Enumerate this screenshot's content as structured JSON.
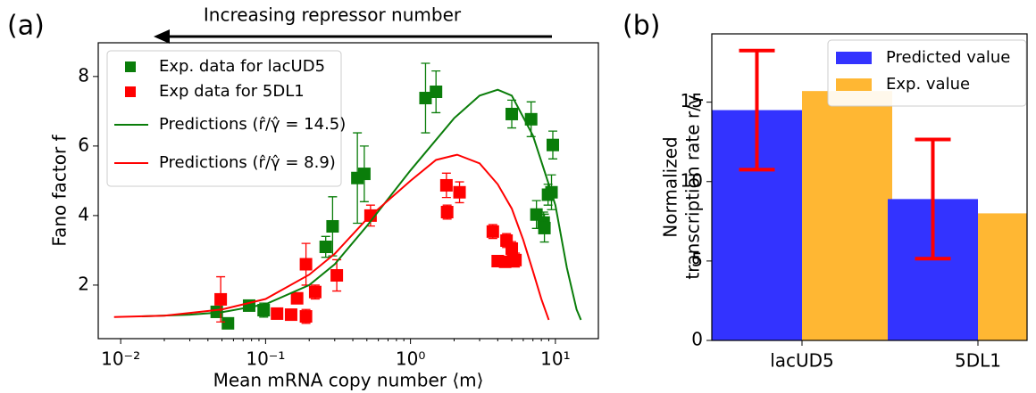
{
  "chart_data": [
    {
      "type": "scatter",
      "panel_label": "(a)",
      "annotation": "Increasing repressor number",
      "xlabel": "Mean mRNA copy number ⟨m⟩",
      "ylabel": "Fano factor f",
      "xscale": "log",
      "xlim": [
        0.007,
        19.8
      ],
      "ylim": [
        0.46,
        8.97
      ],
      "xticks": [
        {
          "value": 0.01,
          "label": "10⁻²"
        },
        {
          "value": 0.1,
          "label": "10⁻¹"
        },
        {
          "value": 1,
          "label": "10⁰"
        },
        {
          "value": 10,
          "label": "10¹"
        }
      ],
      "yticks": [
        2,
        4,
        6,
        8
      ],
      "legend": "upper left",
      "series": [
        {
          "name": "Exp. data for lacUD5",
          "color": "#0a7d0a",
          "kind": "scatter",
          "x": [
            0.046,
            0.055,
            0.077,
            0.097,
            0.26,
            0.29,
            0.43,
            0.48,
            1.27,
            1.5,
            5.0,
            6.8,
            7.4,
            8.3,
            8.4,
            8.9,
            9.4,
            9.6
          ],
          "values": [
            1.23,
            0.9,
            1.41,
            1.28,
            3.1,
            3.69,
            5.08,
            5.2,
            7.38,
            7.56,
            6.92,
            6.77,
            4.03,
            3.8,
            3.64,
            4.6,
            4.67,
            6.03
          ],
          "errors": [
            0.1,
            0.05,
            0.1,
            0.2,
            0.3,
            0.85,
            1.3,
            0.8,
            1.0,
            0.6,
            0.4,
            0.5,
            0.4,
            0.3,
            0.4,
            0.3,
            0.5,
            0.4
          ]
        },
        {
          "name": "Exp data for 5DL1",
          "color": "#ff0000",
          "kind": "scatter",
          "x": [
            0.049,
            0.12,
            0.15,
            0.165,
            0.19,
            0.19,
            0.22,
            0.31,
            0.53,
            1.77,
            1.79,
            2.18,
            3.7,
            4.0,
            4.5,
            4.6,
            5.0,
            5.1,
            5.3
          ],
          "values": [
            1.59,
            1.18,
            1.15,
            1.62,
            2.6,
            1.1,
            1.8,
            2.28,
            4.0,
            4.87,
            4.1,
            4.67,
            3.54,
            2.69,
            2.67,
            3.28,
            3.05,
            2.7,
            2.72
          ],
          "errors": [
            0.65,
            0.15,
            0.1,
            0.15,
            0.6,
            0.2,
            0.2,
            0.45,
            0.3,
            0.35,
            0.2,
            0.3,
            0.2,
            0.15,
            0.1,
            0.2,
            0.2,
            0.15,
            0.2
          ]
        },
        {
          "name": "Predictions (r̂/γ̂ = 14.5)",
          "color": "#0a7d0a",
          "kind": "line",
          "x": [
            0.014,
            0.03,
            0.05,
            0.1,
            0.2,
            0.3,
            0.5,
            1,
            2,
            3,
            4,
            5,
            7,
            9,
            10,
            12,
            14,
            15
          ],
          "values": [
            1.1,
            1.15,
            1.22,
            1.45,
            2.0,
            2.6,
            3.7,
            5.3,
            6.8,
            7.45,
            7.62,
            7.45,
            6.3,
            4.9,
            4.3,
            2.5,
            1.3,
            1.0
          ]
        },
        {
          "name": "Predictions (r̂/γ̂ = 8.9)",
          "color": "#ff0000",
          "kind": "line",
          "x": [
            0.009,
            0.02,
            0.05,
            0.1,
            0.2,
            0.3,
            0.5,
            1,
            1.5,
            2.1,
            3,
            4,
            5,
            6,
            7,
            8,
            9
          ],
          "values": [
            1.08,
            1.12,
            1.3,
            1.6,
            2.3,
            2.9,
            3.9,
            5.0,
            5.6,
            5.75,
            5.5,
            4.9,
            4.2,
            3.3,
            2.4,
            1.6,
            1.0
          ]
        }
      ]
    },
    {
      "type": "bar",
      "panel_label": "(b)",
      "ylabel": [
        "Normalized",
        "transcription rate r/γ"
      ],
      "categories": [
        "lacUD5",
        "5DL1"
      ],
      "ylim": [
        0,
        19.3
      ],
      "yticks": [
        0,
        5,
        10,
        15
      ],
      "legend": "upper right",
      "error_color": "#ff0000",
      "series": [
        {
          "name": "Predicted value",
          "color": "#3333ff",
          "values": [
            14.5,
            8.9
          ],
          "errors": [
            3.75,
            3.75
          ]
        },
        {
          "name": "Exp. value",
          "color": "#ffb733",
          "values": [
            15.7,
            8.0
          ]
        }
      ]
    }
  ]
}
